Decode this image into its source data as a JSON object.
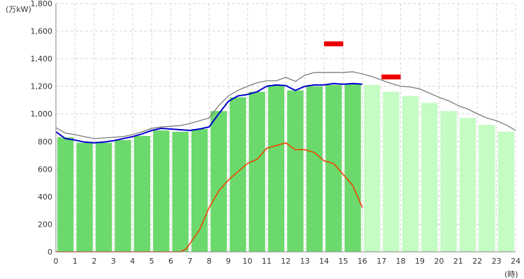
{
  "chart_data": {
    "type": "bar",
    "y_unit": "(万kW)",
    "x_unit": "(時)",
    "xlim": [
      0,
      24
    ],
    "ylim": [
      0,
      1800
    ],
    "yticks": [
      "0",
      "200",
      "400",
      "600",
      "800",
      "1,000",
      "1,200",
      "1,400",
      "1,600",
      "1,800"
    ],
    "xticks": [
      "0",
      "1",
      "2",
      "3",
      "4",
      "5",
      "6",
      "7",
      "8",
      "9",
      "10",
      "11",
      "12",
      "13",
      "14",
      "15",
      "16",
      "17",
      "18",
      "19",
      "20",
      "21",
      "22",
      "23",
      "24"
    ],
    "grid": true,
    "colors": {
      "actual_bar": "#6cd96c",
      "forecast_bar": "#c4fcc4",
      "demand_line": "#0000cc",
      "forecast_line": "#707070",
      "solar_line": "#ee4400",
      "peak_marker": "#ee0000"
    },
    "series": [
      {
        "role": "actual_bars",
        "x": [
          0,
          1,
          2,
          3,
          4,
          5,
          6,
          7,
          8,
          9,
          10,
          11,
          12,
          13,
          14,
          15
        ],
        "values": [
          830,
          790,
          790,
          810,
          840,
          880,
          870,
          890,
          1020,
          1120,
          1160,
          1210,
          1170,
          1200,
          1210,
          1220
        ]
      },
      {
        "role": "forecast_bars",
        "x": [
          16,
          17,
          18,
          19,
          20,
          21,
          22,
          23
        ],
        "values": [
          1210,
          1160,
          1130,
          1080,
          1020,
          970,
          920,
          870
        ]
      },
      {
        "role": "demand_line",
        "x": [
          0,
          0.5,
          1,
          1.5,
          2,
          2.5,
          3,
          3.5,
          4,
          4.5,
          5,
          5.5,
          6,
          6.5,
          7,
          7.5,
          8,
          8.5,
          9,
          9.5,
          10,
          10.5,
          11,
          11.5,
          12,
          12.5,
          13,
          13.5,
          14,
          14.5,
          15,
          15.5,
          16
        ],
        "values": [
          870,
          820,
          810,
          795,
          790,
          795,
          805,
          820,
          835,
          855,
          880,
          895,
          890,
          885,
          880,
          890,
          905,
          1000,
          1090,
          1130,
          1140,
          1160,
          1200,
          1210,
          1205,
          1170,
          1200,
          1210,
          1210,
          1220,
          1215,
          1220,
          1215
        ]
      },
      {
        "role": "forecast_line",
        "x": [
          0,
          0.5,
          1,
          1.5,
          2,
          2.5,
          3,
          3.5,
          4,
          4.5,
          5,
          5.5,
          6,
          6.5,
          7,
          7.5,
          8,
          8.5,
          9,
          9.5,
          10,
          10.5,
          11,
          11.5,
          12,
          12.5,
          13,
          13.5,
          14,
          14.5,
          15,
          15.5,
          16,
          16.5,
          17,
          17.5,
          18,
          18.5,
          19,
          19.5,
          20,
          20.5,
          21,
          21.5,
          22,
          22.5,
          23,
          23.5,
          24
        ],
        "values": [
          900,
          860,
          850,
          835,
          820,
          825,
          830,
          835,
          850,
          870,
          895,
          905,
          910,
          915,
          930,
          950,
          970,
          1060,
          1130,
          1170,
          1200,
          1225,
          1240,
          1240,
          1265,
          1235,
          1280,
          1300,
          1300,
          1300,
          1300,
          1305,
          1290,
          1270,
          1245,
          1220,
          1200,
          1195,
          1180,
          1150,
          1120,
          1095,
          1060,
          1035,
          1000,
          970,
          950,
          920,
          880
        ]
      },
      {
        "role": "solar_line",
        "x": [
          0,
          6.5,
          6.8,
          7,
          7.5,
          8,
          8.5,
          9,
          9.5,
          10,
          10.5,
          11,
          11.5,
          12,
          12.5,
          13,
          13.5,
          14,
          14.5,
          15,
          15.5,
          16
        ],
        "values": [
          0,
          0,
          20,
          60,
          160,
          320,
          440,
          520,
          580,
          640,
          670,
          750,
          770,
          790,
          740,
          740,
          720,
          660,
          640,
          560,
          480,
          320
        ]
      }
    ],
    "peak_markers": [
      {
        "x_start": 14,
        "x_end": 15,
        "value": 1505
      },
      {
        "x_start": 17,
        "x_end": 18,
        "value": 1265
      }
    ]
  }
}
